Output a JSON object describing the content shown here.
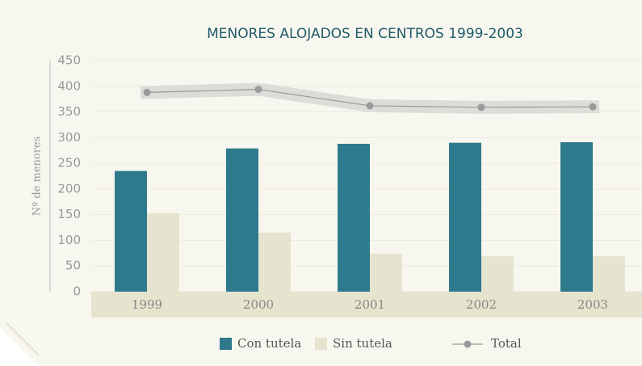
{
  "chart_data": {
    "type": "bar",
    "title": "MENORES ALOJADOS EN CENTROS 1999-2003",
    "y_label": "Nº de menores",
    "categories": [
      "1999",
      "2000",
      "2001",
      "2002",
      "2003"
    ],
    "series": [
      {
        "name": "Con tutela",
        "color": "#2e7a8c",
        "type": "bar",
        "values": [
          235,
          279,
          288,
          290,
          291
        ]
      },
      {
        "name": "Sin tutela",
        "color": "#e4e4cf",
        "type": "bar",
        "values": [
          153,
          115,
          74,
          69,
          69
        ]
      },
      {
        "name": "Total",
        "color": "#9a9a9a",
        "type": "line",
        "values": [
          388,
          394,
          362,
          359,
          360
        ]
      }
    ],
    "ylim": [
      0,
      450
    ],
    "yticks": [
      0,
      50,
      100,
      150,
      200,
      250,
      300,
      350,
      400,
      450
    ],
    "grid": true
  }
}
